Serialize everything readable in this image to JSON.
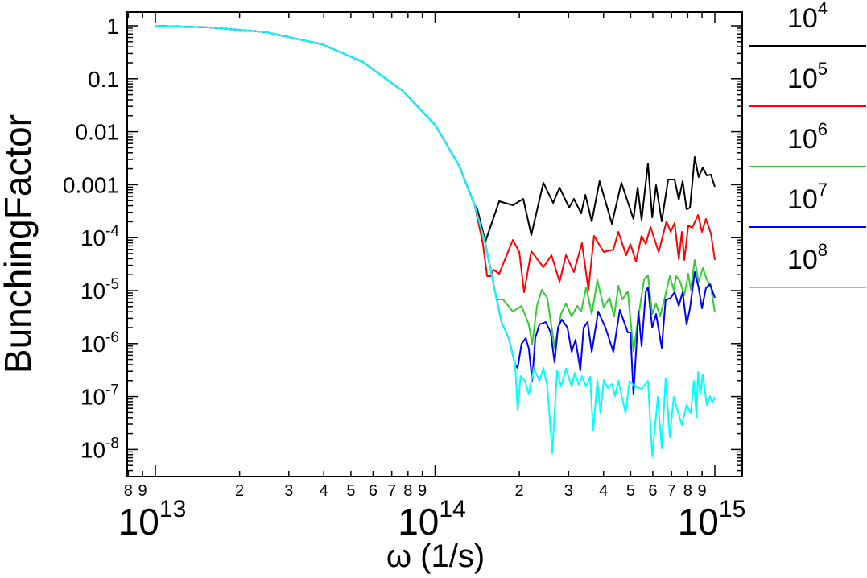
{
  "chart_data": {
    "type": "line",
    "title": "",
    "xlabel": "ω (1/s)",
    "ylabel": "BunchingFactor",
    "x_scale": "log",
    "y_scale": "log",
    "x_units_note": "points given as [log10(omega), log10(bunching factor)]",
    "xlim_log10": [
      12.9,
      15.1
    ],
    "ylim_log10": [
      -8.52,
      0.26
    ],
    "grid": false,
    "legend_placement": "right-outside",
    "x_major_ticks": [
      {
        "log10": 13,
        "base": "10",
        "exp": "13"
      },
      {
        "log10": 14,
        "base": "10",
        "exp": "14"
      },
      {
        "log10": 15,
        "base": "10",
        "exp": "15"
      }
    ],
    "x_minor_tick_labels": [
      {
        "value": 8000000000000.0,
        "label": "8"
      },
      {
        "value": 9000000000000.0,
        "label": "9"
      },
      {
        "value": 20000000000000.0,
        "label": "2"
      },
      {
        "value": 30000000000000.0,
        "label": "3"
      },
      {
        "value": 40000000000000.0,
        "label": "4"
      },
      {
        "value": 50000000000000.0,
        "label": "5"
      },
      {
        "value": 60000000000000.0,
        "label": "6"
      },
      {
        "value": 70000000000000.0,
        "label": "7"
      },
      {
        "value": 80000000000000.0,
        "label": "8"
      },
      {
        "value": 90000000000000.0,
        "label": "9"
      },
      {
        "value": 200000000000000.0,
        "label": "2"
      },
      {
        "value": 300000000000000.0,
        "label": "3"
      },
      {
        "value": 400000000000000.0,
        "label": "4"
      },
      {
        "value": 500000000000000.0,
        "label": "5"
      },
      {
        "value": 600000000000000.0,
        "label": "6"
      },
      {
        "value": 700000000000000.0,
        "label": "7"
      },
      {
        "value": 800000000000000.0,
        "label": "8"
      },
      {
        "value": 900000000000000.0,
        "label": "9"
      }
    ],
    "y_ticks": [
      {
        "log10": 0,
        "base": "1",
        "exp": ""
      },
      {
        "log10": -1,
        "base": "0.1",
        "exp": ""
      },
      {
        "log10": -2,
        "base": "0.01",
        "exp": ""
      },
      {
        "log10": -3,
        "base": "0.001",
        "exp": ""
      },
      {
        "log10": -4,
        "base": "10",
        "exp": "-4"
      },
      {
        "log10": -5,
        "base": "10",
        "exp": "-5"
      },
      {
        "log10": -6,
        "base": "10",
        "exp": "-6"
      },
      {
        "log10": -7,
        "base": "10",
        "exp": "-7"
      },
      {
        "log10": -8,
        "base": "10",
        "exp": "-8"
      }
    ],
    "common": [
      [
        13,
        0
      ],
      [
        13.193,
        -0.03
      ],
      [
        13.394,
        -0.12
      ],
      [
        13.596,
        -0.35
      ],
      [
        13.74,
        -0.68
      ],
      [
        13.884,
        -1.23
      ],
      [
        14.0,
        -1.87
      ],
      [
        14.085,
        -2.63
      ],
      [
        14.142,
        -3.39
      ]
    ],
    "series": [
      {
        "name_base": "10",
        "name_exp": "4",
        "color": "#000000",
        "points": [
          [
            14.151,
            -3.465
          ],
          [
            14.18,
            -4.073
          ],
          [
            14.229,
            -3.313
          ],
          [
            14.278,
            -3.389
          ],
          [
            14.315,
            -3.267
          ],
          [
            14.344,
            -3.951
          ],
          [
            14.387,
            -2.964
          ],
          [
            14.422,
            -3.343
          ],
          [
            14.445,
            -3.055
          ],
          [
            14.479,
            -3.435
          ],
          [
            14.496,
            -3.267
          ],
          [
            14.522,
            -3.541
          ],
          [
            14.537,
            -3.191
          ],
          [
            14.56,
            -3.693
          ],
          [
            14.588,
            -2.933
          ],
          [
            14.632,
            -3.739
          ],
          [
            14.666,
            -2.964
          ],
          [
            14.709,
            -3.647
          ],
          [
            14.724,
            -3.055
          ],
          [
            14.738,
            -3.663
          ],
          [
            14.761,
            -2.599
          ],
          [
            14.776,
            -3.617
          ],
          [
            14.79,
            -3.009
          ],
          [
            14.81,
            -3.693
          ],
          [
            14.833,
            -2.903
          ],
          [
            14.856,
            -2.903
          ],
          [
            14.871,
            -3.283
          ],
          [
            14.885,
            -2.933
          ],
          [
            14.899,
            -3.465
          ],
          [
            14.911,
            -3.435
          ],
          [
            14.928,
            -2.477
          ],
          [
            14.942,
            -2.857
          ],
          [
            14.957,
            -2.675
          ],
          [
            14.971,
            -2.827
          ],
          [
            14.986,
            -2.812
          ],
          [
            15.0,
            -3.04
          ]
        ]
      },
      {
        "name_base": "10",
        "name_exp": "5",
        "color": "#ff0000",
        "points": [
          [
            14.171,
            -4.119
          ],
          [
            14.186,
            -4.726
          ],
          [
            14.2,
            -4.726
          ],
          [
            14.209,
            -4.605
          ],
          [
            14.229,
            -4.681
          ],
          [
            14.278,
            -4.043
          ],
          [
            14.301,
            -4.271
          ],
          [
            14.318,
            -5.03
          ],
          [
            14.344,
            -4.255
          ],
          [
            14.387,
            -4.559
          ],
          [
            14.416,
            -4.331
          ],
          [
            14.445,
            -4.833
          ],
          [
            14.468,
            -4.331
          ],
          [
            14.496,
            -4.65
          ],
          [
            14.525,
            -4.103
          ],
          [
            14.548,
            -4.985
          ],
          [
            14.568,
            -3.967
          ],
          [
            14.603,
            -4.271
          ],
          [
            14.637,
            -4.225
          ],
          [
            14.655,
            -3.891
          ],
          [
            14.683,
            -4.331
          ],
          [
            14.698,
            -4.119
          ],
          [
            14.718,
            -4.453
          ],
          [
            14.738,
            -3.967
          ],
          [
            14.753,
            -4.119
          ],
          [
            14.77,
            -3.799
          ],
          [
            14.799,
            -4.271
          ],
          [
            14.827,
            -3.693
          ],
          [
            14.842,
            -3.891
          ],
          [
            14.856,
            -3.723
          ],
          [
            14.871,
            -4.407
          ],
          [
            14.882,
            -3.891
          ],
          [
            14.891,
            -4.422
          ],
          [
            14.905,
            -3.769
          ],
          [
            14.919,
            -3.815
          ],
          [
            14.94,
            -3.571
          ],
          [
            14.954,
            -3.891
          ],
          [
            14.968,
            -3.647
          ],
          [
            14.986,
            -3.921
          ],
          [
            15.0,
            -4.422
          ]
        ]
      },
      {
        "name_base": "10",
        "name_exp": "6",
        "color": "#33cc33",
        "points": [
          [
            14.18,
            -4.119
          ],
          [
            14.214,
            -5.015
          ],
          [
            14.22,
            -5.167
          ],
          [
            14.243,
            -5.167
          ],
          [
            14.278,
            -5.395
          ],
          [
            14.309,
            -5.289
          ],
          [
            14.335,
            -5.638
          ],
          [
            14.347,
            -6.018
          ],
          [
            14.364,
            -5.289
          ],
          [
            14.381,
            -4.985
          ],
          [
            14.401,
            -5.137
          ],
          [
            14.427,
            -6.079
          ],
          [
            14.45,
            -5.441
          ],
          [
            14.468,
            -5.243
          ],
          [
            14.488,
            -5.486
          ],
          [
            14.508,
            -5.289
          ],
          [
            14.522,
            -5.395
          ],
          [
            14.54,
            -4.939
          ],
          [
            14.56,
            -5.441
          ],
          [
            14.58,
            -4.802
          ],
          [
            14.603,
            -5.319
          ],
          [
            14.623,
            -5.137
          ],
          [
            14.64,
            -5.486
          ],
          [
            14.655,
            -4.909
          ],
          [
            14.669,
            -5.167
          ],
          [
            14.689,
            -5.015
          ],
          [
            14.709,
            -6.155
          ],
          [
            14.727,
            -5.486
          ],
          [
            14.747,
            -4.787
          ],
          [
            14.761,
            -4.711
          ],
          [
            14.776,
            -5.441
          ],
          [
            14.79,
            -5.243
          ],
          [
            14.804,
            -5.486
          ],
          [
            14.819,
            -5.182
          ],
          [
            14.839,
            -4.726
          ],
          [
            14.853,
            -4.985
          ],
          [
            14.862,
            -4.726
          ],
          [
            14.876,
            -4.833
          ],
          [
            14.891,
            -5.091
          ],
          [
            14.905,
            -4.681
          ],
          [
            14.914,
            -4.985
          ],
          [
            14.928,
            -4.422
          ],
          [
            14.942,
            -4.833
          ],
          [
            14.957,
            -4.574
          ],
          [
            14.971,
            -4.787
          ],
          [
            14.986,
            -4.939
          ],
          [
            15.0,
            -5.41
          ]
        ]
      },
      {
        "name_base": "10",
        "name_exp": "7",
        "color": "#0000ff",
        "points": [
          [
            14.18,
            -4.119
          ],
          [
            14.214,
            -5.015
          ],
          [
            14.237,
            -5.593
          ],
          [
            14.263,
            -5.897
          ],
          [
            14.286,
            -6.398
          ],
          [
            14.295,
            -6.459
          ],
          [
            14.309,
            -6.003
          ],
          [
            14.324,
            -5.897
          ],
          [
            14.335,
            -6.094
          ],
          [
            14.347,
            -6.702
          ],
          [
            14.358,
            -5.897
          ],
          [
            14.373,
            -5.638
          ],
          [
            14.396,
            -5.593
          ],
          [
            14.413,
            -5.79
          ],
          [
            14.427,
            -6.353
          ],
          [
            14.439,
            -5.699
          ],
          [
            14.453,
            -5.547
          ],
          [
            14.473,
            -5.699
          ],
          [
            14.488,
            -6.155
          ],
          [
            14.502,
            -5.927
          ],
          [
            14.519,
            -6.505
          ],
          [
            14.531,
            -5.699
          ],
          [
            14.545,
            -5.593
          ],
          [
            14.56,
            -6.155
          ],
          [
            14.583,
            -5.395
          ],
          [
            14.609,
            -5.699
          ],
          [
            14.637,
            -6.155
          ],
          [
            14.66,
            -5.365
          ],
          [
            14.689,
            -5.79
          ],
          [
            14.698,
            -5.79
          ],
          [
            14.709,
            -6.96
          ],
          [
            14.727,
            -5.395
          ],
          [
            14.738,
            -6.049
          ],
          [
            14.753,
            -5.015
          ],
          [
            14.761,
            -4.939
          ],
          [
            14.776,
            -5.699
          ],
          [
            14.79,
            -5.441
          ],
          [
            14.81,
            -6.079
          ],
          [
            14.824,
            -5.182
          ],
          [
            14.842,
            -5.137
          ],
          [
            14.856,
            -5.03
          ],
          [
            14.871,
            -5.289
          ],
          [
            14.885,
            -5.03
          ],
          [
            14.899,
            -5.638
          ],
          [
            14.911,
            -5.334
          ],
          [
            14.928,
            -4.65
          ],
          [
            14.942,
            -4.939
          ],
          [
            14.954,
            -5.334
          ],
          [
            14.968,
            -4.954
          ],
          [
            14.983,
            -4.878
          ],
          [
            15.0,
            -5.137
          ]
        ]
      },
      {
        "name_base": "10",
        "name_exp": "8",
        "color": "#00ffff",
        "points": [
          [
            14.18,
            -4.119
          ],
          [
            14.214,
            -5.015
          ],
          [
            14.237,
            -5.593
          ],
          [
            14.263,
            -5.897
          ],
          [
            14.286,
            -6.398
          ],
          [
            14.295,
            -7.264
          ],
          [
            14.306,
            -6.611
          ],
          [
            14.321,
            -6.702
          ],
          [
            14.335,
            -6.96
          ],
          [
            14.353,
            -6.459
          ],
          [
            14.373,
            -6.702
          ],
          [
            14.387,
            -6.459
          ],
          [
            14.401,
            -6.809
          ],
          [
            14.419,
            -8.07
          ],
          [
            14.436,
            -6.505
          ],
          [
            14.45,
            -6.809
          ],
          [
            14.468,
            -6.474
          ],
          [
            14.488,
            -6.809
          ],
          [
            14.499,
            -6.55
          ],
          [
            14.514,
            -6.778
          ],
          [
            14.525,
            -6.611
          ],
          [
            14.54,
            -6.809
          ],
          [
            14.554,
            -6.626
          ],
          [
            14.565,
            -7.644
          ],
          [
            14.58,
            -6.687
          ],
          [
            14.591,
            -7.31
          ],
          [
            14.603,
            -6.687
          ],
          [
            14.617,
            -6.839
          ],
          [
            14.632,
            -6.763
          ],
          [
            14.643,
            -6.991
          ],
          [
            14.655,
            -6.702
          ],
          [
            14.681,
            -7.31
          ],
          [
            14.695,
            -6.702
          ],
          [
            14.712,
            -6.809
          ],
          [
            14.738,
            -6.854
          ],
          [
            14.761,
            -6.702
          ],
          [
            14.776,
            -8.131
          ],
          [
            14.796,
            -7.006
          ],
          [
            14.81,
            -7.979
          ],
          [
            14.824,
            -6.657
          ],
          [
            14.839,
            -7.766
          ],
          [
            14.853,
            -7.006
          ],
          [
            14.882,
            -7.538
          ],
          [
            14.899,
            -7.158
          ],
          [
            14.914,
            -7.31
          ],
          [
            14.925,
            -6.702
          ],
          [
            14.934,
            -7.386
          ],
          [
            14.94,
            -6.535
          ],
          [
            14.948,
            -6.96
          ],
          [
            14.957,
            -6.581
          ],
          [
            14.971,
            -7.158
          ],
          [
            14.983,
            -6.991
          ],
          [
            14.991,
            -7.112
          ],
          [
            15.0,
            -7.006
          ]
        ]
      }
    ]
  }
}
